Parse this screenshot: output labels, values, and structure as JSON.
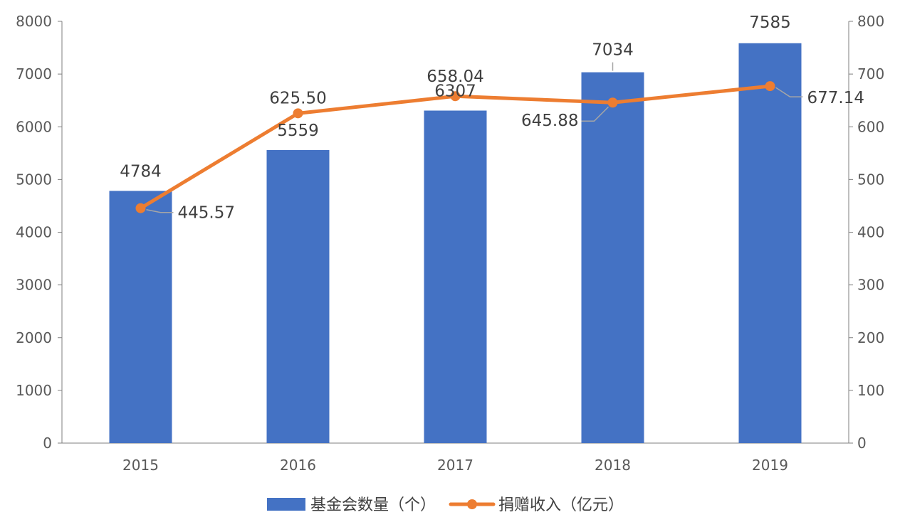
{
  "colors": {
    "bar": "#4472C4",
    "line": "#ED7D31",
    "axis": "#7F7F7F",
    "leader": "#A6A6A6",
    "text": "#595959",
    "label": "#404040"
  },
  "chart_data": {
    "type": "bar",
    "categories": [
      "2015",
      "2016",
      "2017",
      "2018",
      "2019"
    ],
    "series": [
      {
        "name": "基金会数量（个）",
        "type": "bar",
        "axis": "left",
        "values": [
          4784,
          5559,
          6307,
          7034,
          7585
        ],
        "labels": [
          "4784",
          "5559",
          "6307",
          "7034",
          "7585"
        ]
      },
      {
        "name": "捐赠收入（亿元）",
        "type": "line",
        "axis": "right",
        "values": [
          445.57,
          625.5,
          658.04,
          645.88,
          677.14
        ],
        "labels": [
          "445.57",
          "625.50",
          "658.04",
          "645.88",
          "677.14"
        ]
      }
    ],
    "y_left": {
      "range": [
        0,
        8000
      ],
      "ticks": [
        "0",
        "1000",
        "2000",
        "3000",
        "4000",
        "5000",
        "6000",
        "7000",
        "8000"
      ]
    },
    "y_right": {
      "range": [
        0,
        800
      ],
      "ticks": [
        "0",
        "100",
        "200",
        "300",
        "400",
        "500",
        "600",
        "700",
        "800"
      ]
    },
    "title": "",
    "xlabel": "",
    "ylabel": "",
    "grid": false,
    "legend": "bottom-center"
  }
}
